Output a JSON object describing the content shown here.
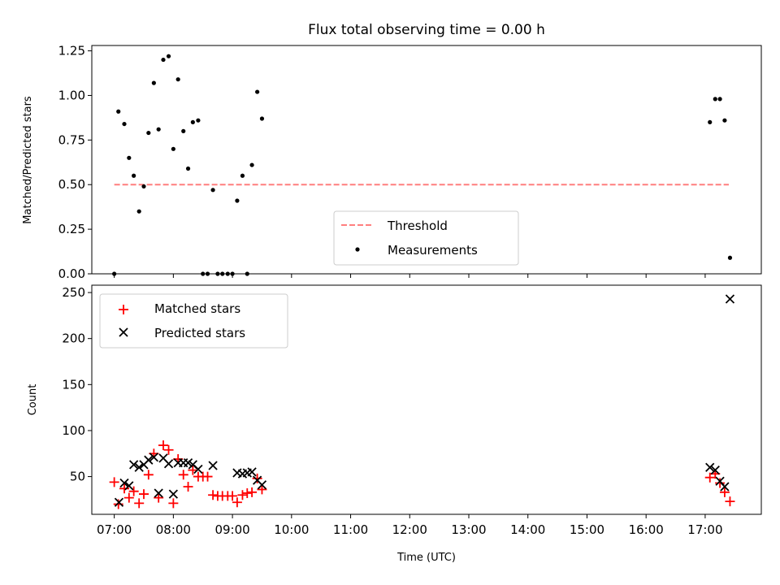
{
  "figure": {
    "title": "Flux total observing time = 0.00 h"
  },
  "chart_data": [
    {
      "type": "scatter",
      "ylabel": "Matched/Predicted stars",
      "xlabel": "",
      "x_range_hours": [
        6.62,
        17.95
      ],
      "ylim": [
        0,
        1.28
      ],
      "y_ticks": [
        0.0,
        0.25,
        0.5,
        0.75,
        1.0,
        1.25
      ],
      "y_tick_labels": [
        "0.00",
        "0.25",
        "0.50",
        "0.75",
        "1.00",
        "1.25"
      ],
      "x_ticks": [
        7,
        8,
        9,
        10,
        11,
        12,
        13,
        14,
        15,
        16,
        17
      ],
      "show_x_tick_labels": false,
      "legend": {
        "placement": "lower center",
        "entries": [
          "Threshold",
          "Measurements"
        ]
      },
      "threshold": {
        "name": "Threshold",
        "x": [
          7.0,
          17.4
        ],
        "y": 0.5,
        "color": "#ff7f7f",
        "style": "dashed"
      },
      "series": [
        {
          "name": "Measurements",
          "color": "#000000",
          "marker": "dot",
          "x": [
            7.0,
            7.07,
            7.17,
            7.25,
            7.33,
            7.42,
            7.5,
            7.58,
            7.67,
            7.75,
            7.83,
            7.92,
            8.0,
            8.08,
            8.17,
            8.25,
            8.33,
            8.42,
            8.5,
            8.58,
            8.67,
            8.75,
            8.83,
            8.92,
            9.0,
            9.08,
            9.17,
            9.25,
            9.33,
            9.42,
            9.5,
            17.08,
            17.17,
            17.25,
            17.33,
            17.42
          ],
          "y": [
            0.0,
            0.91,
            0.84,
            0.65,
            0.55,
            0.35,
            0.49,
            0.79,
            1.07,
            0.81,
            1.2,
            1.22,
            0.7,
            1.09,
            0.8,
            0.59,
            0.85,
            0.86,
            0.0,
            0.0,
            0.47,
            0.0,
            0.0,
            0.0,
            0.0,
            0.41,
            0.55,
            0.0,
            0.61,
            1.02,
            0.87,
            0.85,
            0.98,
            0.98,
            0.86,
            0.09
          ]
        }
      ]
    },
    {
      "type": "scatter",
      "ylabel": "Count",
      "xlabel": "Time (UTC)",
      "x_range_hours": [
        6.62,
        17.95
      ],
      "ylim": [
        9,
        258
      ],
      "y_ticks": [
        50,
        100,
        150,
        200,
        250
      ],
      "y_tick_labels": [
        "50",
        "100",
        "150",
        "200",
        "250"
      ],
      "x_ticks": [
        7,
        8,
        9,
        10,
        11,
        12,
        13,
        14,
        15,
        16,
        17
      ],
      "x_tick_labels": [
        "07:00",
        "08:00",
        "09:00",
        "10:00",
        "11:00",
        "12:00",
        "13:00",
        "14:00",
        "15:00",
        "16:00",
        "17:00"
      ],
      "legend": {
        "placement": "top-left",
        "entries": [
          "Matched stars",
          "Predicted stars"
        ]
      },
      "series": [
        {
          "name": "Matched stars",
          "color": "#ff0000",
          "marker": "plus",
          "x": [
            7.0,
            7.07,
            7.17,
            7.25,
            7.33,
            7.42,
            7.5,
            7.58,
            7.67,
            7.75,
            7.83,
            7.92,
            8.0,
            8.08,
            8.17,
            8.25,
            8.33,
            8.42,
            8.5,
            8.58,
            8.67,
            8.75,
            8.83,
            8.92,
            9.0,
            9.08,
            9.17,
            9.25,
            9.33,
            9.42,
            9.5,
            17.08,
            17.17,
            17.25,
            17.33,
            17.42
          ],
          "y": [
            44,
            20,
            37,
            27,
            34,
            21,
            31,
            52,
            75,
            27,
            84,
            79,
            21,
            69,
            52,
            39,
            57,
            50,
            50,
            50,
            30,
            29,
            29,
            29,
            29,
            22,
            30,
            32,
            33,
            48,
            36,
            49,
            53,
            43,
            33,
            23
          ]
        },
        {
          "name": "Predicted stars",
          "color": "#000000",
          "marker": "x",
          "x": [
            7.08,
            7.17,
            7.25,
            7.33,
            7.42,
            7.5,
            7.58,
            7.67,
            7.75,
            7.83,
            7.92,
            8.0,
            8.08,
            8.17,
            8.25,
            8.33,
            8.42,
            8.67,
            9.08,
            9.17,
            9.25,
            9.33,
            9.42,
            9.5,
            17.08,
            17.17,
            17.25,
            17.33,
            17.42
          ],
          "y": [
            22,
            43,
            40,
            63,
            60,
            63,
            68,
            71,
            32,
            70,
            64,
            31,
            65,
            65,
            65,
            63,
            58,
            62,
            54,
            53,
            54,
            55,
            46,
            41,
            60,
            57,
            45,
            39,
            243
          ]
        }
      ]
    }
  ]
}
